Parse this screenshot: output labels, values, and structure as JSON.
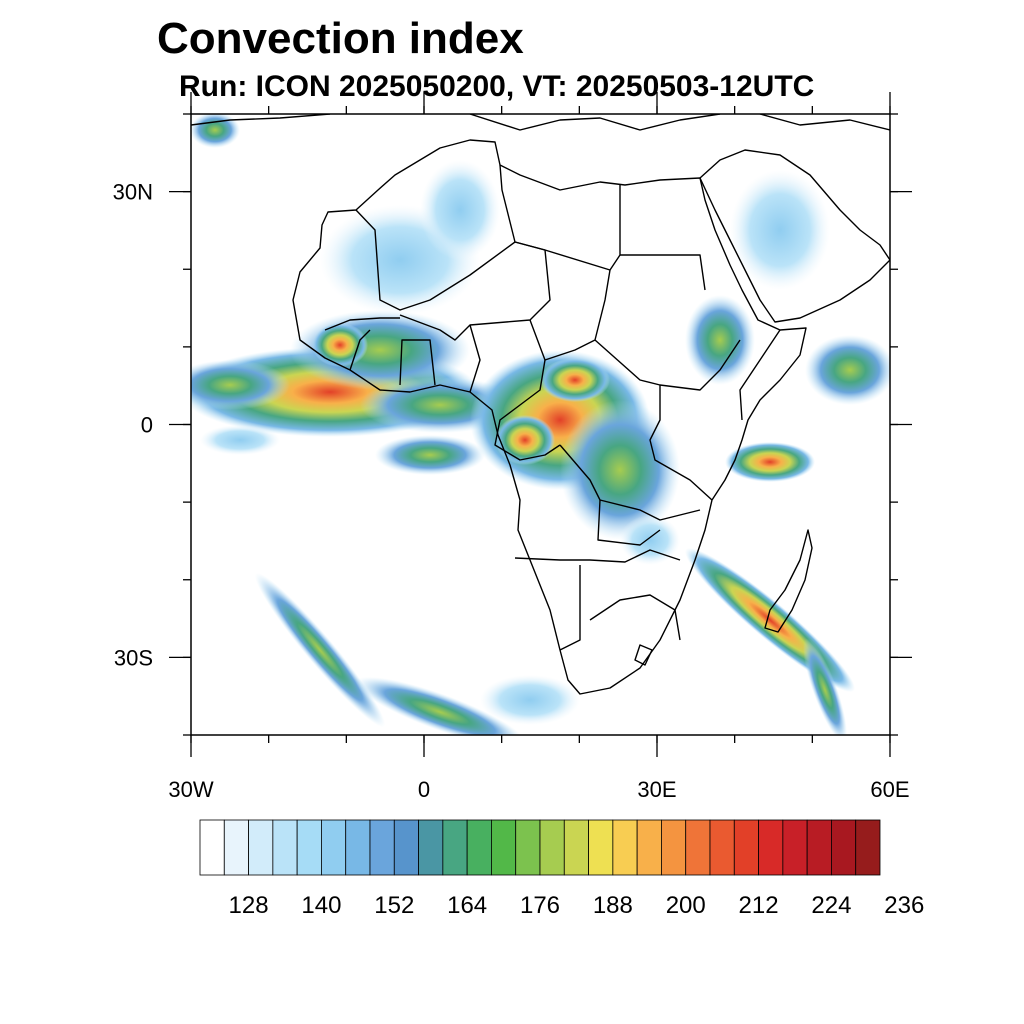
{
  "title": "Convection index",
  "subtitle": "Run: ICON 2025050200,  VT: 20250503-12UTC",
  "map": {
    "projection": "cylindrical-equidistant",
    "lon_range": [
      -30,
      60
    ],
    "lat_range": [
      -40,
      40
    ],
    "lon_ticks": [
      {
        "value": -30,
        "label": "30W"
      },
      {
        "value": 0,
        "label": "0"
      },
      {
        "value": 30,
        "label": "30E"
      },
      {
        "value": 60,
        "label": "60E"
      }
    ],
    "lat_ticks": [
      {
        "value": 30,
        "label": "30N"
      },
      {
        "value": 0,
        "label": "0"
      },
      {
        "value": -30,
        "label": "30S"
      }
    ],
    "minor_lon_step": 10,
    "minor_lat_step": 10
  },
  "colorbar": {
    "colors": [
      "#ffffff",
      "#e8f4fc",
      "#d2ecfa",
      "#bae3f8",
      "#a6dcf6",
      "#90cdf0",
      "#78b8e6",
      "#6aa5dc",
      "#5794cc",
      "#4a96a4",
      "#48a682",
      "#48b060",
      "#52b848",
      "#7cc24e",
      "#a6cc50",
      "#cad552",
      "#eee052",
      "#f8cd52",
      "#f8b04a",
      "#f49440",
      "#ef7438",
      "#ea5a30",
      "#e24028",
      "#d82a28",
      "#c82028",
      "#b81c24",
      "#a81820",
      "#961c1c"
    ],
    "tick_labels": [
      "128",
      "140",
      "152",
      "164",
      "176",
      "188",
      "200",
      "212",
      "224",
      "236"
    ]
  }
}
